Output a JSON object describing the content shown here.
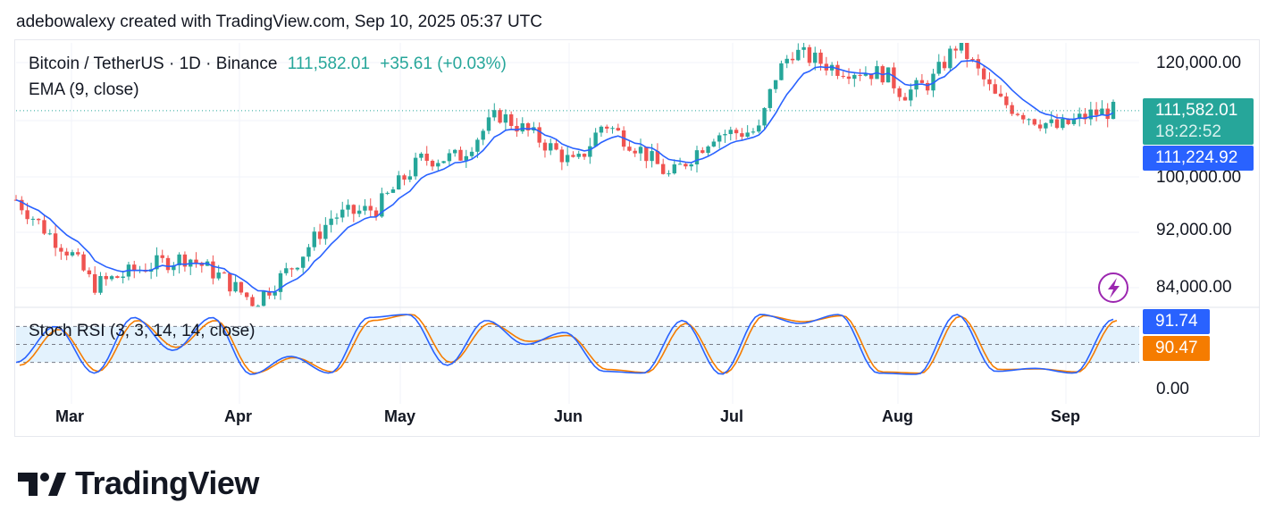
{
  "header": {
    "text": "adebowalexy created with TradingView.com, Sep 10, 2025 05:37 UTC"
  },
  "legend": {
    "symbol": "Bitcoin / TetherUS · 1D · Binance",
    "price": "111,582.01",
    "change": "+35.61 (+0.03%)",
    "ema": "EMA (9, close)",
    "stoch": "Stoch RSI (3, 3, 14, 14, close)"
  },
  "badges": {
    "last_price": "111,582.01",
    "countdown": "18:22:52",
    "ema_value": "111,224.92",
    "stoch_k": "91.74",
    "stoch_d": "90.47"
  },
  "price_axis": [
    "120,000.00",
    "100,000.00",
    "92,000.00",
    "84,000.00"
  ],
  "stoch_axis": [
    "0.00"
  ],
  "months": [
    "Mar",
    "Apr",
    "May",
    "Jun",
    "Jul",
    "Aug",
    "Sep"
  ],
  "logo": {
    "text": "TradingView"
  },
  "colors": {
    "up": "#26a69a",
    "down": "#ef5350",
    "ema": "#2962ff",
    "stoch_k": "#2962ff",
    "stoch_d": "#f57c00",
    "stoch_band": "#e3f2fd"
  },
  "chart_data": {
    "type": "candlestick",
    "title": "Bitcoin / TetherUS · 1D · Binance",
    "price_ticks": [
      120000,
      100000,
      92000,
      84000
    ],
    "last_price": 111582.01,
    "ema_last": 111224.92,
    "close_path": [
      [
        "2025-02-24",
        96000
      ],
      [
        "2025-03-02",
        90000
      ],
      [
        "2025-03-06",
        86500
      ],
      [
        "2025-03-10",
        81000
      ],
      [
        "2025-03-20",
        84500
      ],
      [
        "2025-03-27",
        86000
      ],
      [
        "2025-04-02",
        82500
      ],
      [
        "2025-04-08",
        78000
      ],
      [
        "2025-04-15",
        84500
      ],
      [
        "2025-04-22",
        93000
      ],
      [
        "2025-04-30",
        94500
      ],
      [
        "2025-05-08",
        103000
      ],
      [
        "2025-05-15",
        103500
      ],
      [
        "2025-05-22",
        111000
      ],
      [
        "2025-05-28",
        107500
      ],
      [
        "2025-06-05",
        102000
      ],
      [
        "2025-06-10",
        109500
      ],
      [
        "2025-06-17",
        104500
      ],
      [
        "2025-06-22",
        100000
      ],
      [
        "2025-06-30",
        107500
      ],
      [
        "2025-07-08",
        108000
      ],
      [
        "2025-07-11",
        117500
      ],
      [
        "2025-07-14",
        122000
      ],
      [
        "2025-07-22",
        119000
      ],
      [
        "2025-07-31",
        118000
      ],
      [
        "2025-08-03",
        114500
      ],
      [
        "2025-08-08",
        116500
      ],
      [
        "2025-08-13",
        123500
      ],
      [
        "2025-08-20",
        113500
      ],
      [
        "2025-08-26",
        110500
      ],
      [
        "2025-08-31",
        108500
      ],
      [
        "2025-09-06",
        111000
      ],
      [
        "2025-09-10",
        111582
      ]
    ],
    "stoch_rsi": {
      "k": [
        20,
        80,
        2,
        95,
        40,
        95,
        0,
        30,
        2,
        95,
        100,
        15,
        90,
        50,
        70,
        5,
        2,
        90,
        0,
        100,
        85,
        100,
        2,
        0,
        100,
        5,
        10,
        2,
        92
      ],
      "d": [
        15,
        75,
        5,
        90,
        45,
        90,
        2,
        28,
        4,
        90,
        100,
        20,
        85,
        55,
        65,
        8,
        3,
        85,
        2,
        98,
        88,
        98,
        4,
        2,
        97,
        8,
        9,
        4,
        90
      ],
      "k_last": 91.74,
      "d_last": 90.47,
      "bands": [
        80,
        50,
        20
      ]
    }
  }
}
